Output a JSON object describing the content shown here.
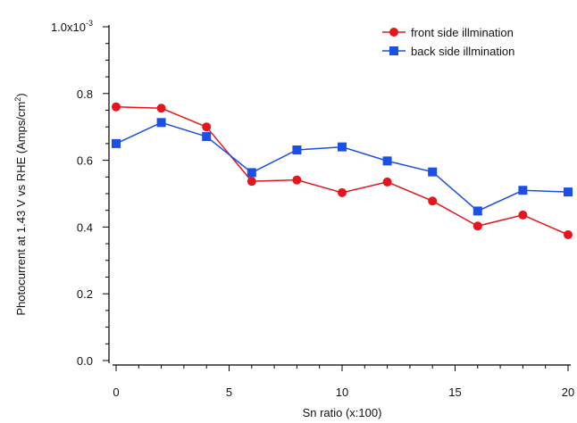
{
  "chart_data": {
    "type": "line",
    "title": "",
    "xlabel": "Sn ratio (x:100)",
    "ylabel": {
      "main": "Photocurrent at 1.43 V vs RHE (Amps/cm",
      "sup": "2",
      "tail": ")"
    },
    "x": [
      0,
      2,
      4,
      6,
      8,
      10,
      12,
      14,
      16,
      18,
      20
    ],
    "xlim": [
      0,
      20
    ],
    "ylim": [
      0,
      0.001
    ],
    "x_ticks": [
      {
        "value": 0,
        "label": "0"
      },
      {
        "value": 5,
        "label": "5"
      },
      {
        "value": 10,
        "label": "10"
      },
      {
        "value": 15,
        "label": "15"
      },
      {
        "value": 20,
        "label": "20"
      }
    ],
    "y_ticks": [
      {
        "value": 0,
        "label": "0.0"
      },
      {
        "value": 0.0002,
        "label": "0.2"
      },
      {
        "value": 0.0004,
        "label": "0.4"
      },
      {
        "value": 0.0006,
        "label": "0.6"
      },
      {
        "value": 0.0008,
        "label": "0.8"
      }
    ],
    "y_top_label": {
      "base": "1.0x10",
      "exp": "-3"
    },
    "grid": false,
    "legend_position": "top-right",
    "series": [
      {
        "name": "front side illmination",
        "color": "#e8141b",
        "marker": "circle",
        "values": [
          0.00076,
          0.000756,
          0.0007,
          0.000537,
          0.000541,
          0.000503,
          0.000535,
          0.000478,
          0.000403,
          0.000436,
          0.000377
        ]
      },
      {
        "name": "back side illmination",
        "color": "#1c4fe6",
        "marker": "square",
        "values": [
          0.00065,
          0.000713,
          0.000671,
          0.000563,
          0.000631,
          0.00064,
          0.000598,
          0.000565,
          0.000448,
          0.00051,
          0.000505
        ]
      }
    ]
  }
}
